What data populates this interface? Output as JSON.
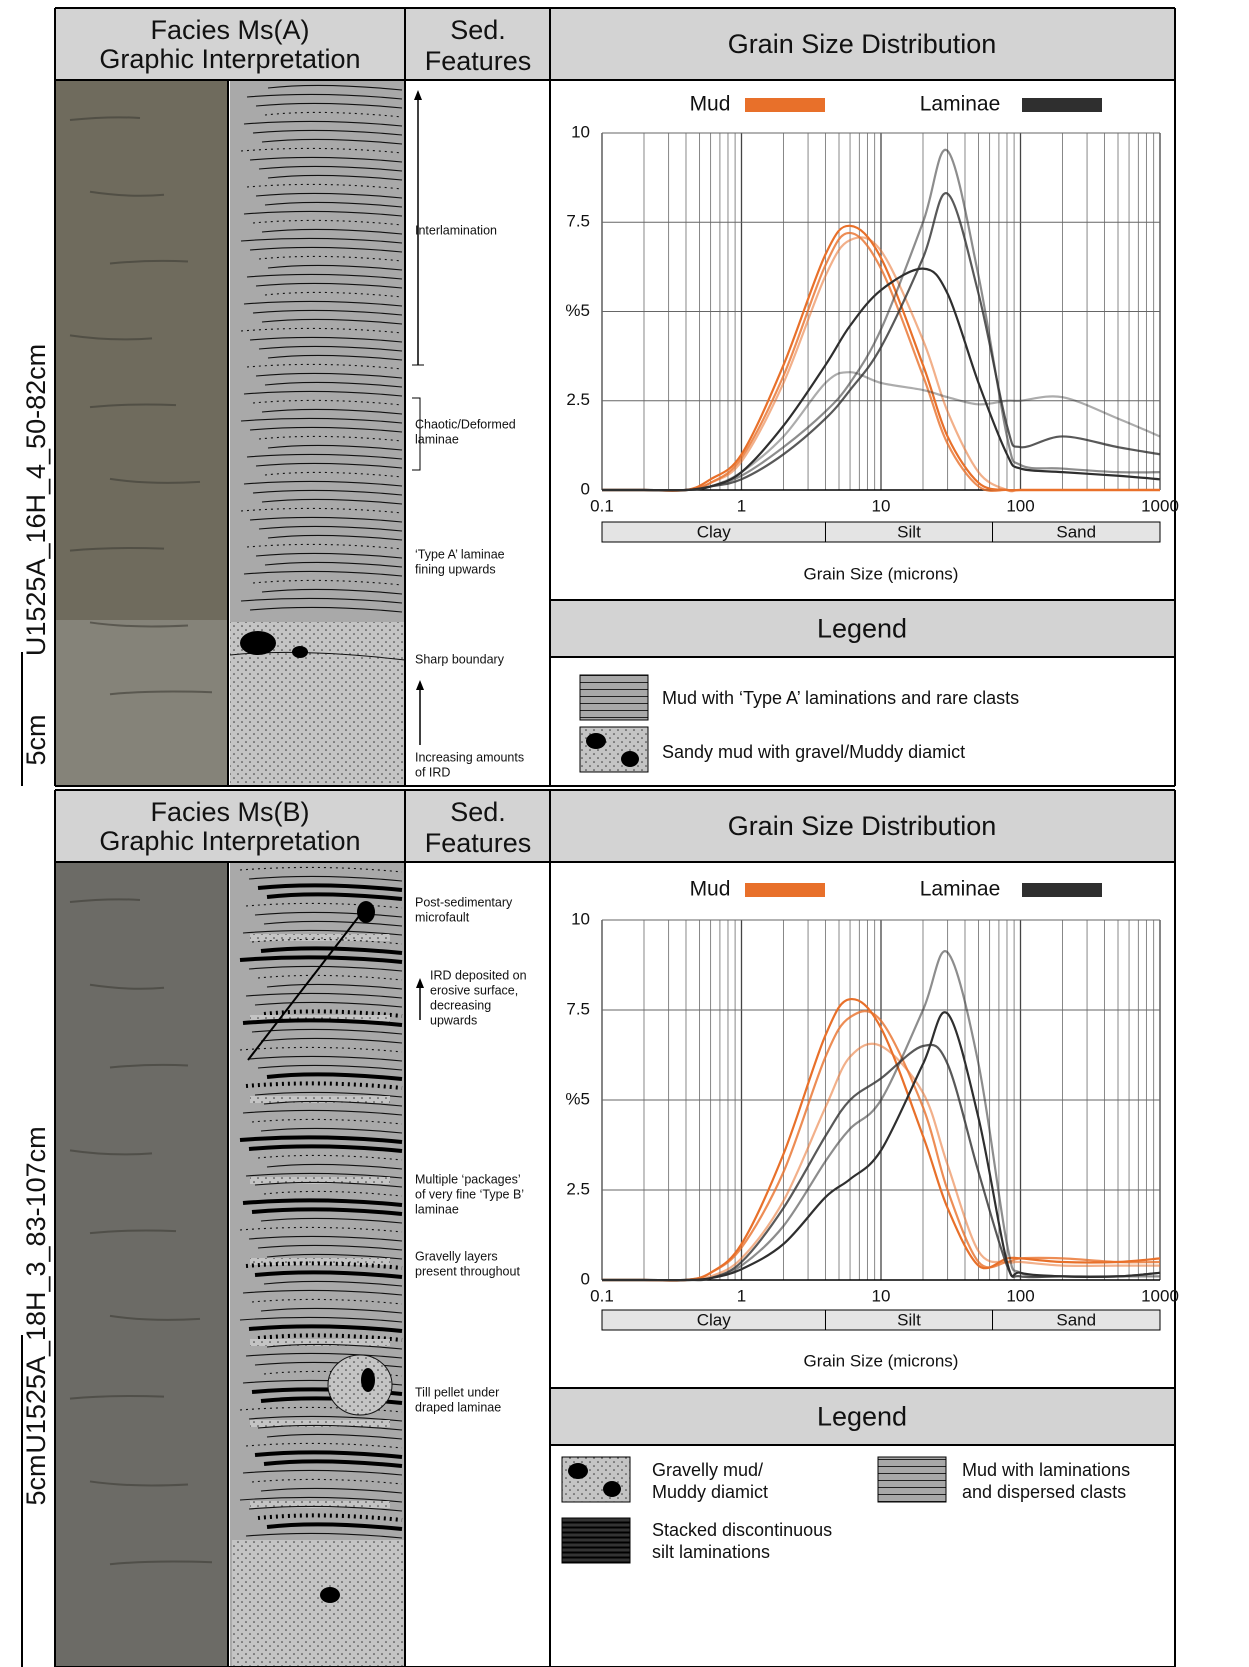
{
  "panels": [
    {
      "facies_title": "Facies Ms(A)",
      "facies_subtitle": "Graphic Interpretation",
      "sed_header": [
        "Sed.",
        "Features"
      ],
      "grain_header": "Grain Size Distribution",
      "core_label": "U1525A_16H_4_50-82cm",
      "scale_label": "5cm",
      "features": [
        [
          "Interlamination"
        ],
        [
          "Chaotic/Deformed",
          "laminae"
        ],
        [
          "‘Type A’ laminae",
          "fining upwards"
        ],
        [
          "Sharp boundary"
        ],
        [
          "Increasing amounts",
          "of IRD"
        ]
      ],
      "legend_title": "Legend",
      "legend_items": [
        [
          "Mud with ‘Type A’ laminations and rare clasts"
        ],
        [
          "Sandy mud with gravel/Muddy diamict"
        ]
      ]
    },
    {
      "facies_title": "Facies Ms(B)",
      "facies_subtitle": "Graphic Interpretation",
      "sed_header": [
        "Sed.",
        "Features"
      ],
      "grain_header": "Grain Size Distribution",
      "core_label": "U1525A_18H_3_83-107cm",
      "scale_label": "5cm",
      "features": [
        [
          "Post-sedimentary",
          "microfault"
        ],
        [
          "IRD deposited on",
          "erosive surface,",
          "decreasing",
          "upwards"
        ],
        [
          "Multiple ‘packages’",
          "of very fine ‘Type B’",
          "laminae"
        ],
        [
          "Gravelly layers",
          "present throughout"
        ],
        [
          "Till pellet under",
          "draped laminae"
        ]
      ],
      "legend_title": "Legend",
      "legend_items": [
        [
          "Gravelly mud/",
          "Muddy diamict"
        ],
        [
          "Mud with laminations",
          "and dispersed clasts"
        ],
        [
          "Stacked discontinuous",
          "silt laminations"
        ]
      ]
    }
  ],
  "chart_data": [
    {
      "type": "line",
      "log_x": true,
      "grid": true,
      "xlabel": "Grain Size (microns)",
      "x": [
        0.1,
        0.2,
        0.4,
        0.6,
        1,
        2,
        4,
        6,
        10,
        20,
        30,
        50,
        80,
        100,
        200,
        500,
        1000
      ],
      "xlim": [
        0.1,
        1000
      ],
      "xticks": [
        0.1,
        1,
        10,
        100,
        1000
      ],
      "ylim": [
        0,
        10
      ],
      "yticks": [
        0,
        2.5,
        {
          "value": 5,
          "label": "%5"
        },
        7.5,
        10
      ],
      "classes": [
        {
          "label": "Clay",
          "from": 0.1,
          "to": 4
        },
        {
          "label": "Silt",
          "from": 4,
          "to": 63
        },
        {
          "label": "Sand",
          "from": 63,
          "to": 1000
        }
      ],
      "series": [
        {
          "name": "Mud",
          "color": "#e8702a",
          "values": [
            [
              0,
              0,
              0,
              0.3,
              1.0,
              3.5,
              6.6,
              7.4,
              6.5,
              3.5,
              1.5,
              0.2,
              0,
              0,
              0,
              0,
              0
            ],
            [
              0,
              0,
              0,
              0.2,
              0.8,
              3.0,
              6.0,
              7.0,
              6.7,
              4.2,
              2.2,
              0.5,
              0,
              0,
              0,
              0,
              0
            ],
            [
              0,
              0,
              0,
              0.2,
              0.9,
              3.2,
              6.3,
              7.2,
              6.2,
              3.2,
              1.3,
              0.1,
              0,
              0,
              0,
              0,
              0
            ]
          ]
        },
        {
          "name": "Laminae",
          "color": "#2f2f2f",
          "values": [
            [
              0,
              0,
              0,
              0.1,
              0.5,
              1.8,
              3.5,
              4.6,
              5.6,
              6.2,
              5.5,
              3.0,
              1.0,
              0.6,
              0.5,
              0.4,
              0.3
            ],
            [
              0,
              0,
              0,
              0.1,
              0.4,
              1.2,
              2.2,
              3.0,
              4.5,
              7.5,
              9.5,
              6.0,
              1.5,
              0.7,
              0.6,
              0.5,
              0.5
            ],
            [
              0,
              0,
              0,
              0.1,
              0.3,
              1.0,
              2.0,
              2.8,
              4.0,
              6.5,
              8.3,
              5.5,
              1.8,
              1.2,
              1.5,
              1.2,
              1.0
            ],
            [
              0,
              0,
              0,
              0.1,
              0.5,
              1.5,
              3.0,
              3.3,
              3.0,
              2.8,
              2.6,
              2.4,
              2.5,
              2.5,
              2.6,
              2.0,
              1.5
            ]
          ]
        }
      ]
    },
    {
      "type": "line",
      "log_x": true,
      "grid": true,
      "xlabel": "Grain Size (microns)",
      "x": [
        0.1,
        0.2,
        0.4,
        0.6,
        1,
        2,
        4,
        6,
        10,
        20,
        30,
        50,
        80,
        100,
        200,
        500,
        1000
      ],
      "xlim": [
        0.1,
        1000
      ],
      "xticks": [
        0.1,
        1,
        10,
        100,
        1000
      ],
      "ylim": [
        0,
        10
      ],
      "yticks": [
        0,
        2.5,
        {
          "value": 5,
          "label": "%5"
        },
        7.5,
        10
      ],
      "classes": [
        {
          "label": "Clay",
          "from": 0.1,
          "to": 4
        },
        {
          "label": "Silt",
          "from": 4,
          "to": 63
        },
        {
          "label": "Sand",
          "from": 63,
          "to": 1000
        }
      ],
      "series": [
        {
          "name": "Mud",
          "color": "#e8702a",
          "values": [
            [
              0,
              0,
              0,
              0.2,
              1.0,
              3.5,
              6.8,
              7.8,
              7.0,
              4.0,
              2.0,
              0.4,
              0.6,
              0.6,
              0.5,
              0.5,
              0.6
            ],
            [
              0,
              0,
              0,
              0.1,
              0.6,
              2.2,
              4.8,
              6.2,
              6.5,
              5.2,
              3.2,
              0.8,
              0.5,
              0.5,
              0.4,
              0.4,
              0.4
            ],
            [
              0,
              0,
              0,
              0.2,
              0.9,
              3.0,
              6.2,
              7.3,
              7.2,
              4.8,
              2.5,
              0.5,
              0.5,
              0.6,
              0.6,
              0.5,
              0.5
            ]
          ]
        },
        {
          "name": "Laminae",
          "color": "#2f2f2f",
          "values": [
            [
              0,
              0,
              0,
              0.05,
              0.3,
              1.0,
              2.3,
              2.8,
              3.6,
              6.0,
              7.4,
              4.5,
              0.5,
              0.2,
              0.1,
              0.1,
              0.2
            ],
            [
              0,
              0,
              0,
              0.05,
              0.4,
              1.5,
              3.3,
              4.2,
              5.0,
              7.5,
              9.1,
              6.0,
              1.0,
              0.2,
              0.1,
              0.1,
              0.1
            ],
            [
              0,
              0,
              0,
              0.05,
              0.5,
              2.0,
              4.0,
              5.0,
              5.6,
              6.5,
              6.0,
              3.0,
              0.4,
              0.1,
              0.1,
              0.1,
              0.2
            ]
          ]
        }
      ]
    }
  ]
}
